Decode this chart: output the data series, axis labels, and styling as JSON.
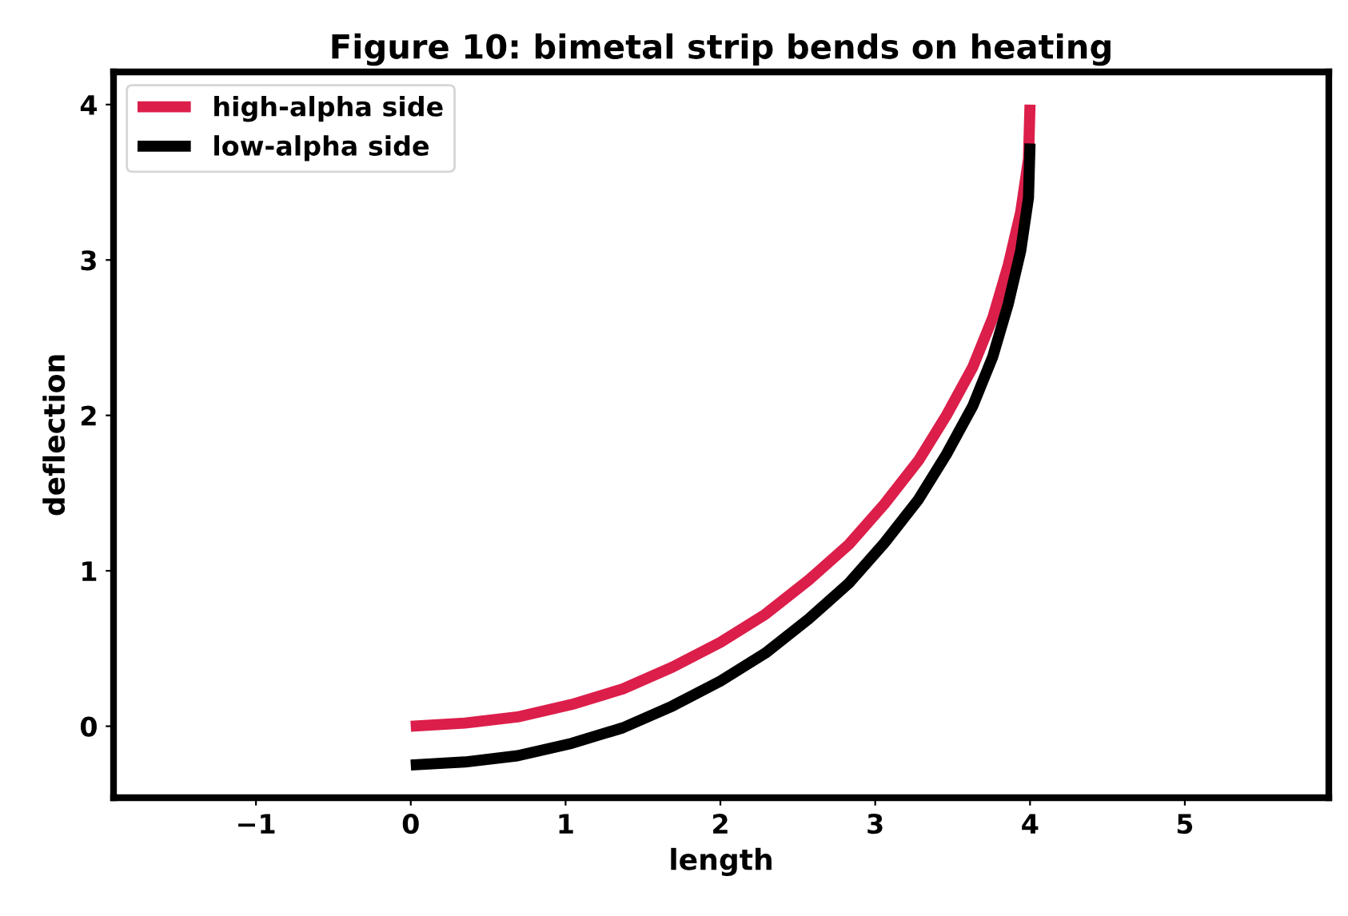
{
  "chart_data": {
    "type": "line",
    "title": "Figure 10: bimetal strip bends on heating",
    "xlabel": "length",
    "ylabel": "deflection",
    "xlim": [
      -1.92,
      5.93
    ],
    "ylim": [
      -0.46,
      4.21
    ],
    "xticks": [
      {
        "value": -1,
        "label": "−1"
      },
      0,
      1,
      2,
      3,
      4,
      5
    ],
    "yticks": [
      0,
      1,
      2,
      3,
      4
    ],
    "grid": false,
    "legend": "top left",
    "marker": "none",
    "line_style": "solid",
    "series": [
      {
        "name": "high-alpha side",
        "color": "#dc1e4a",
        "x": [
          0,
          0.35,
          0.69,
          1.04,
          1.37,
          1.69,
          2.0,
          2.29,
          2.57,
          2.83,
          3.06,
          3.28,
          3.46,
          3.63,
          3.76,
          3.86,
          3.94,
          3.99,
          4.0
        ],
        "values": [
          0,
          0.02,
          0.06,
          0.14,
          0.24,
          0.38,
          0.54,
          0.72,
          0.94,
          1.17,
          1.43,
          1.71,
          2.0,
          2.31,
          2.63,
          2.97,
          3.31,
          3.65,
          4.0
        ]
      },
      {
        "name": "low-alpha side",
        "color": "#000000",
        "x": [
          0,
          0.35,
          0.69,
          1.04,
          1.37,
          1.69,
          2.0,
          2.29,
          2.57,
          2.83,
          3.06,
          3.28,
          3.46,
          3.63,
          3.76,
          3.86,
          3.94,
          3.99,
          4.0
        ],
        "values": [
          -0.25,
          -0.23,
          -0.19,
          -0.11,
          -0.01,
          0.13,
          0.29,
          0.47,
          0.69,
          0.92,
          1.18,
          1.46,
          1.75,
          2.06,
          2.38,
          2.72,
          3.06,
          3.4,
          3.75
        ]
      }
    ]
  }
}
